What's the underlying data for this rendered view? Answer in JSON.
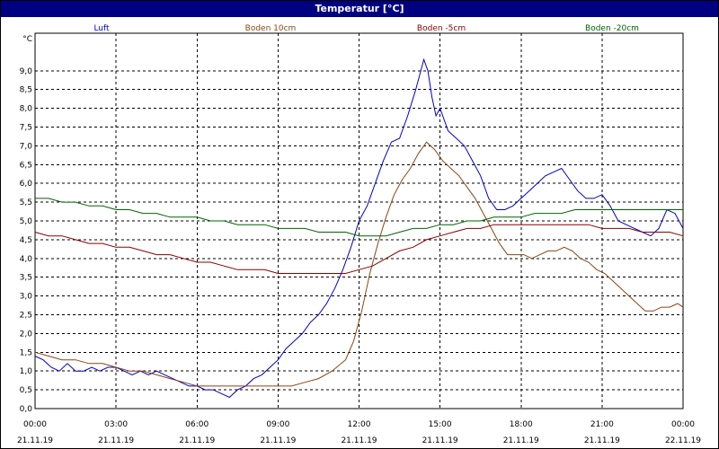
{
  "window": {
    "title": "Temperatur [°C]"
  },
  "chart_data": {
    "type": "line",
    "title": "Temperatur [°C]",
    "ylabel": "°C",
    "xlabel": "",
    "ylim": [
      0,
      10
    ],
    "xlim": [
      0,
      24
    ],
    "grid": true,
    "legend_position": "top",
    "yticks": [
      "0,0",
      "0,5",
      "1,0",
      "1,5",
      "2,0",
      "2,5",
      "3,0",
      "3,5",
      "4,0",
      "4,5",
      "5,0",
      "5,5",
      "6,0",
      "6,5",
      "7,0",
      "7,5",
      "8,0",
      "8,5",
      "9,0"
    ],
    "xticks": [
      {
        "x": 0,
        "time": "00:00",
        "date": "21.11.19"
      },
      {
        "x": 3,
        "time": "03:00",
        "date": "21.11.19"
      },
      {
        "x": 6,
        "time": "06:00",
        "date": "21.11.19"
      },
      {
        "x": 9,
        "time": "09:00",
        "date": "21.11.19"
      },
      {
        "x": 12,
        "time": "12:00",
        "date": "21.11.19"
      },
      {
        "x": 15,
        "time": "15:00",
        "date": "21.11.19"
      },
      {
        "x": 18,
        "time": "18:00",
        "date": "21.11.19"
      },
      {
        "x": 21,
        "time": "21:00",
        "date": "21.11.19"
      },
      {
        "x": 24,
        "time": "00:00",
        "date": "22.11.19"
      }
    ],
    "series": [
      {
        "name": "Luft",
        "color": "#0000cc",
        "x": [
          0,
          0.3,
          0.6,
          0.9,
          1.2,
          1.5,
          1.8,
          2.1,
          2.4,
          2.7,
          3.0,
          3.3,
          3.6,
          3.9,
          4.2,
          4.5,
          4.8,
          5.1,
          5.4,
          5.7,
          6.0,
          6.3,
          6.6,
          6.9,
          7.2,
          7.5,
          7.8,
          8.1,
          8.4,
          8.7,
          9.0,
          9.3,
          9.6,
          9.9,
          10.2,
          10.5,
          10.8,
          11.1,
          11.4,
          11.7,
          12.0,
          12.3,
          12.6,
          12.9,
          13.2,
          13.5,
          13.8,
          14.1,
          14.4,
          14.55,
          14.7,
          14.85,
          15.0,
          15.3,
          15.6,
          15.9,
          16.2,
          16.5,
          16.8,
          17.1,
          17.4,
          17.7,
          18.0,
          18.3,
          18.6,
          18.9,
          19.2,
          19.5,
          19.8,
          20.1,
          20.4,
          20.7,
          21.0,
          21.3,
          21.6,
          21.9,
          22.2,
          22.5,
          22.8,
          23.1,
          23.4,
          23.7,
          24.0
        ],
        "values": [
          1.4,
          1.3,
          1.1,
          1.0,
          1.2,
          1.0,
          1.0,
          1.1,
          1.0,
          1.1,
          1.1,
          1.0,
          0.9,
          1.0,
          0.9,
          1.0,
          0.9,
          0.8,
          0.7,
          0.6,
          0.6,
          0.5,
          0.5,
          0.4,
          0.3,
          0.5,
          0.6,
          0.8,
          0.9,
          1.1,
          1.3,
          1.6,
          1.8,
          2.0,
          2.3,
          2.5,
          2.8,
          3.2,
          3.7,
          4.3,
          5.0,
          5.4,
          6.0,
          6.6,
          7.1,
          7.2,
          7.8,
          8.5,
          9.3,
          9.0,
          8.3,
          7.8,
          8.0,
          7.4,
          7.2,
          7.0,
          6.6,
          6.2,
          5.6,
          5.3,
          5.3,
          5.4,
          5.6,
          5.8,
          6.0,
          6.2,
          6.3,
          6.4,
          6.1,
          5.8,
          5.6,
          5.6,
          5.7,
          5.4,
          5.0,
          4.9,
          4.8,
          4.7,
          4.6,
          4.8,
          5.3,
          5.2,
          4.8
        ]
      },
      {
        "name": "Boden 10cm",
        "color": "#8b4513",
        "x": [
          0,
          0.5,
          1.0,
          1.5,
          2.0,
          2.5,
          3.0,
          3.5,
          4.0,
          4.5,
          5.0,
          5.5,
          6.0,
          6.5,
          7.0,
          7.5,
          8.0,
          8.5,
          9.0,
          9.5,
          10.0,
          10.5,
          11.0,
          11.5,
          11.8,
          12.1,
          12.4,
          12.7,
          13.0,
          13.3,
          13.6,
          13.9,
          14.2,
          14.5,
          14.8,
          15.1,
          15.4,
          15.7,
          16.0,
          16.3,
          16.6,
          16.9,
          17.2,
          17.5,
          17.8,
          18.1,
          18.4,
          18.7,
          19.0,
          19.3,
          19.6,
          19.9,
          20.2,
          20.5,
          20.8,
          21.1,
          21.4,
          21.7,
          22.0,
          22.3,
          22.6,
          22.9,
          23.2,
          23.5,
          23.8,
          24.0
        ],
        "values": [
          1.5,
          1.4,
          1.3,
          1.3,
          1.2,
          1.2,
          1.1,
          1.0,
          1.0,
          0.9,
          0.8,
          0.7,
          0.6,
          0.6,
          0.6,
          0.6,
          0.6,
          0.6,
          0.6,
          0.6,
          0.7,
          0.8,
          1.0,
          1.3,
          1.8,
          2.6,
          3.6,
          4.4,
          5.1,
          5.7,
          6.1,
          6.4,
          6.8,
          7.1,
          6.9,
          6.6,
          6.4,
          6.2,
          5.9,
          5.6,
          5.2,
          4.8,
          4.4,
          4.1,
          4.1,
          4.1,
          4.0,
          4.1,
          4.2,
          4.2,
          4.3,
          4.2,
          4.0,
          3.9,
          3.7,
          3.6,
          3.4,
          3.2,
          3.0,
          2.8,
          2.6,
          2.6,
          2.7,
          2.7,
          2.8,
          2.7
        ]
      },
      {
        "name": "Boden -5cm",
        "color": "#8b0000",
        "x": [
          0,
          0.5,
          1.0,
          1.5,
          2.0,
          2.5,
          3.0,
          3.5,
          4.0,
          4.5,
          5.0,
          5.5,
          6.0,
          6.5,
          7.0,
          7.5,
          8.0,
          8.5,
          9.0,
          9.5,
          10.0,
          10.5,
          11.0,
          11.5,
          12.0,
          12.5,
          13.0,
          13.5,
          14.0,
          14.5,
          15.0,
          15.5,
          16.0,
          16.5,
          17.0,
          17.5,
          18.0,
          18.5,
          19.0,
          19.5,
          20.0,
          20.5,
          21.0,
          21.5,
          22.0,
          22.5,
          23.0,
          23.5,
          24.0
        ],
        "values": [
          4.7,
          4.6,
          4.6,
          4.5,
          4.4,
          4.4,
          4.3,
          4.3,
          4.2,
          4.1,
          4.1,
          4.0,
          3.9,
          3.9,
          3.8,
          3.7,
          3.7,
          3.7,
          3.6,
          3.6,
          3.6,
          3.6,
          3.6,
          3.6,
          3.7,
          3.8,
          4.0,
          4.2,
          4.3,
          4.5,
          4.6,
          4.7,
          4.8,
          4.8,
          4.9,
          4.9,
          4.9,
          4.9,
          4.9,
          4.9,
          4.9,
          4.9,
          4.8,
          4.8,
          4.8,
          4.7,
          4.7,
          4.7,
          4.6
        ]
      },
      {
        "name": "Boden -20cm",
        "color": "#006400",
        "x": [
          0,
          0.5,
          1.0,
          1.5,
          2.0,
          2.5,
          3.0,
          3.5,
          4.0,
          4.5,
          5.0,
          5.5,
          6.0,
          6.5,
          7.0,
          7.5,
          8.0,
          8.5,
          9.0,
          9.5,
          10.0,
          10.5,
          11.0,
          11.5,
          12.0,
          12.5,
          13.0,
          13.5,
          14.0,
          14.5,
          15.0,
          15.5,
          16.0,
          16.5,
          17.0,
          17.5,
          18.0,
          18.5,
          19.0,
          19.5,
          20.0,
          20.5,
          21.0,
          21.5,
          22.0,
          22.5,
          23.0,
          23.5,
          24.0
        ],
        "values": [
          5.6,
          5.6,
          5.5,
          5.5,
          5.4,
          5.4,
          5.3,
          5.3,
          5.2,
          5.2,
          5.1,
          5.1,
          5.1,
          5.0,
          5.0,
          4.9,
          4.9,
          4.9,
          4.8,
          4.8,
          4.8,
          4.7,
          4.7,
          4.7,
          4.6,
          4.6,
          4.6,
          4.7,
          4.8,
          4.8,
          4.9,
          4.9,
          5.0,
          5.0,
          5.1,
          5.1,
          5.1,
          5.2,
          5.2,
          5.2,
          5.3,
          5.3,
          5.3,
          5.3,
          5.3,
          5.3,
          5.3,
          5.3,
          5.3
        ]
      }
    ]
  }
}
